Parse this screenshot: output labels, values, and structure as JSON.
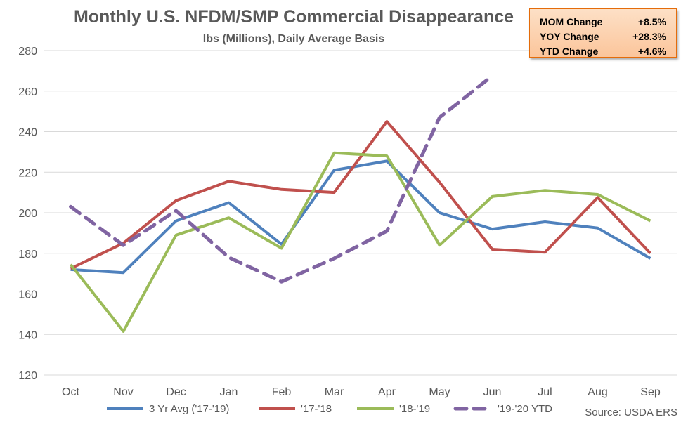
{
  "chart_data": {
    "type": "line",
    "title": "Monthly U.S. NFDM/SMP Commercial Disappearance",
    "subtitle": "lbs (Millions), Daily Average Basis",
    "categories": [
      "Oct",
      "Nov",
      "Dec",
      "Jan",
      "Feb",
      "Mar",
      "Apr",
      "May",
      "Jun",
      "Jul",
      "Aug",
      "Sep"
    ],
    "ylim": [
      120,
      280
    ],
    "yticks": [
      "120",
      "140",
      "160",
      "180",
      "200",
      "220",
      "240",
      "260",
      "280"
    ],
    "grid": true,
    "legend_position": "bottom",
    "series": [
      {
        "name": "3 Yr Avg ('17-'19)",
        "color": "#4f81bd",
        "dashed": false,
        "values": [
          172,
          170.5,
          196,
          205,
          184.5,
          221,
          225.5,
          200,
          192,
          195.5,
          192.5,
          177.5
        ]
      },
      {
        "name": "'17-'18",
        "color": "#c0504d",
        "dashed": false,
        "values": [
          172.5,
          185,
          206,
          215.5,
          211.5,
          210,
          245,
          215,
          182,
          180.5,
          207.5,
          180
        ]
      },
      {
        "name": "'18-'19",
        "color": "#9bbb59",
        "dashed": false,
        "values": [
          174.5,
          141.5,
          189,
          197.5,
          182.5,
          229.5,
          228,
          184,
          208,
          211,
          209,
          196
        ]
      },
      {
        "name": "'19-'20 YTD",
        "color": "#8064a2",
        "dashed": true,
        "values": [
          203,
          184,
          201,
          178,
          166,
          177.5,
          191,
          247,
          267.5,
          null,
          null,
          null
        ]
      }
    ]
  },
  "stats": [
    {
      "label": "MOM Change",
      "value": "+8.5%"
    },
    {
      "label": "YOY Change",
      "value": "+28.3%"
    },
    {
      "label": "YTD Change",
      "value": "+4.6%"
    }
  ],
  "source": "Source: USDA ERS"
}
